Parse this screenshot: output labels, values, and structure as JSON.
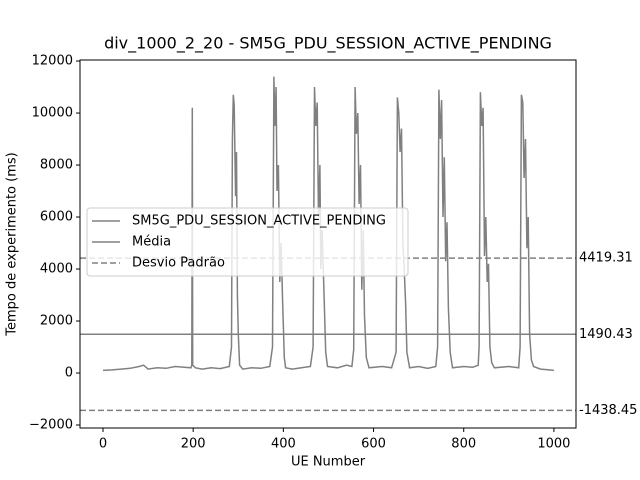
{
  "chart_data": {
    "type": "line",
    "title": "div_1000_2_20 - SM5G_PDU_SESSION_ACTIVE_PENDING",
    "x_label": "UE Number",
    "y_label": "Tempo de experimento (ms)",
    "xlim": [
      -51,
      1049
    ],
    "ylim": [
      -2115,
      12040
    ],
    "xticks": [
      0,
      200,
      400,
      600,
      800,
      1000
    ],
    "yticks": [
      {
        "value": -2000,
        "label": "−2000"
      },
      0,
      2000,
      4000,
      6000,
      8000,
      10000,
      12000
    ],
    "legend": "center left",
    "series": [
      {
        "name": "SM5G_PDU_SESSION_ACTIVE_PENDING",
        "color": "#808080",
        "x": [
          0,
          20,
          40,
          60,
          80,
          90,
          100,
          120,
          140,
          160,
          180,
          195,
          197,
          198,
          199,
          205,
          220,
          240,
          260,
          280,
          285,
          287,
          289,
          291,
          293,
          294,
          296,
          298,
          300,
          303,
          310,
          330,
          350,
          370,
          376,
          379,
          381,
          384,
          386,
          389,
          392,
          395,
          398,
          402,
          405,
          420,
          440,
          460,
          466,
          469,
          472,
          475,
          478,
          481,
          483,
          486,
          490,
          494,
          498,
          520,
          540,
          552,
          556,
          559,
          562,
          565,
          568,
          571,
          574,
          577,
          580,
          584,
          590,
          620,
          640,
          650,
          653,
          656,
          659,
          662,
          665,
          668,
          671,
          674,
          680,
          700,
          720,
          738,
          742,
          745,
          748,
          751,
          754,
          757,
          760,
          763,
          766,
          770,
          775,
          800,
          820,
          832,
          834,
          837,
          840,
          843,
          846,
          849,
          852,
          855,
          858,
          862,
          868,
          900,
          922,
          925,
          928,
          931,
          934,
          937,
          940,
          943,
          946,
          950,
          955,
          970,
          990,
          1000
        ],
        "values": [
          100,
          120,
          150,
          180,
          250,
          300,
          150,
          200,
          180,
          250,
          220,
          200,
          300,
          10200,
          300,
          200,
          150,
          200,
          170,
          250,
          1000,
          9000,
          10700,
          10300,
          8000,
          6800,
          8500,
          3000,
          1500,
          300,
          150,
          200,
          180,
          250,
          1000,
          11400,
          9500,
          11000,
          7000,
          8000,
          3500,
          5000,
          2900,
          600,
          200,
          150,
          200,
          250,
          1000,
          11000,
          9500,
          10400,
          6000,
          8000,
          4000,
          5500,
          3200,
          800,
          250,
          200,
          300,
          250,
          900,
          11000,
          9200,
          10000,
          6500,
          8000,
          3200,
          5500,
          2200,
          600,
          200,
          250,
          200,
          800,
          10600,
          10000,
          8500,
          9400,
          5000,
          4000,
          2700,
          800,
          200,
          250,
          180,
          250,
          1000,
          10900,
          9000,
          10500,
          6000,
          8300,
          4300,
          5800,
          2500,
          800,
          200,
          250,
          220,
          300,
          1000,
          10800,
          9500,
          10200,
          4500,
          6000,
          3500,
          4200,
          1000,
          400,
          200,
          250,
          200,
          1000,
          10700,
          10400,
          7500,
          9000,
          4800,
          6000,
          1500,
          500,
          250,
          150,
          120,
          100
        ]
      }
    ],
    "mean": {
      "name": "Média",
      "value": 1490.43,
      "color": "#808080"
    },
    "std": {
      "name": "Desvio Padrão",
      "values": [
        4419.31,
        -1438.45
      ],
      "color": "#808080"
    }
  }
}
